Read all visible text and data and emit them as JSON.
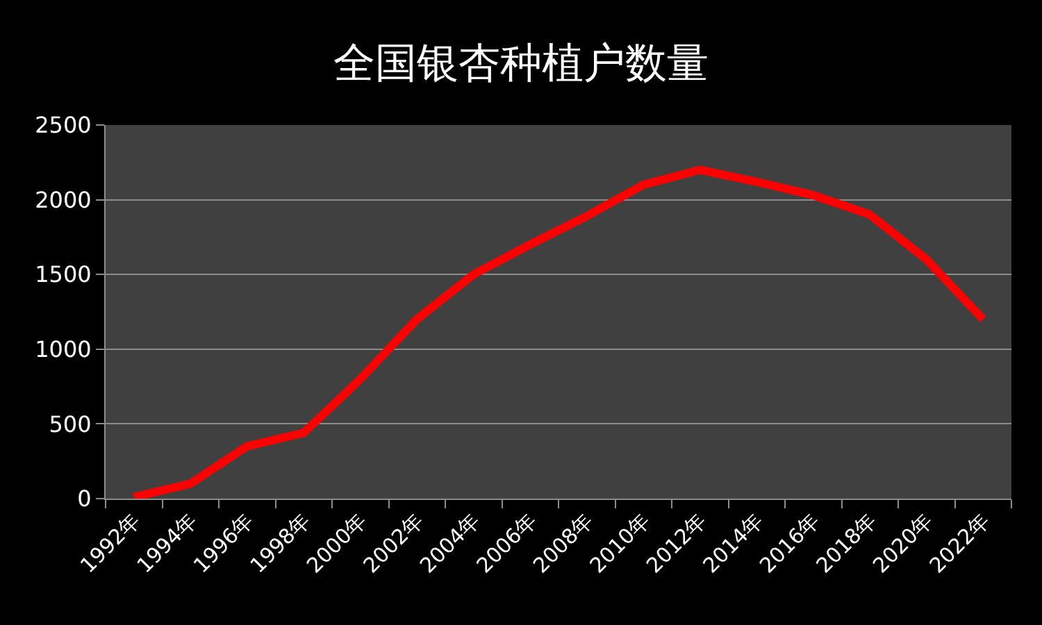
{
  "chart_data": {
    "type": "line",
    "title": "全国银杏种植户数量",
    "categories": [
      "1992年",
      "1994年",
      "1996年",
      "1998年",
      "2000年",
      "2002年",
      "2004年",
      "2006年",
      "2008年",
      "2010年",
      "2012年",
      "2014年",
      "2016年",
      "2018年",
      "2020年",
      "2022年"
    ],
    "series": [
      {
        "color": "#ff0000",
        "values": [
          10,
          100,
          350,
          440,
          800,
          1200,
          1500,
          1700,
          1890,
          2100,
          2200,
          2120,
          2030,
          1900,
          1600,
          1200
        ]
      }
    ],
    "ylim": [
      0,
      2500
    ],
    "yticks": [
      0,
      500,
      1000,
      1500,
      2000,
      2500
    ],
    "grid": "y",
    "line_style": "solid"
  }
}
